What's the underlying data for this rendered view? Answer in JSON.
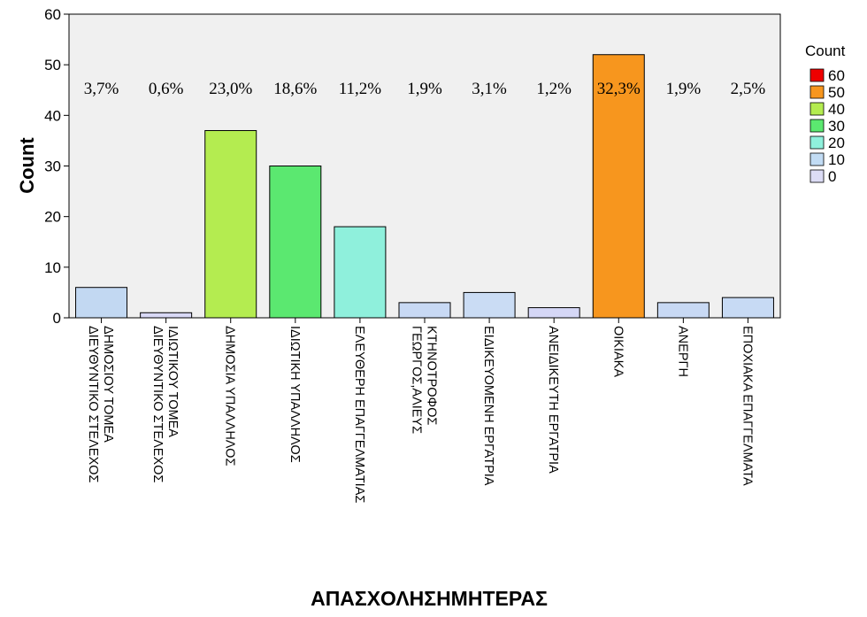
{
  "chart_data": {
    "type": "bar",
    "ylabel": "Count",
    "xlabel": "ΑΠΑΣΧΟΛΗΣΗΜΗΤΕΡΑΣ",
    "ylim": [
      0,
      60
    ],
    "yticks": [
      "0",
      "10",
      "20",
      "30",
      "40",
      "50",
      "60"
    ],
    "grid": false,
    "categories": [
      [
        "ΔΙΕΥΘΥΝΤΙΚΟ ΣΤΕΛΕΧΟΣ",
        "ΔΗΜΟΣΙΟΥ ΤΟΜΕΑ"
      ],
      [
        "ΔΙΕΥΘΥΝΤΙΚΟ ΣΤΕΛΕΧΟΣ",
        "ΙΔΙΩΤΙΚΟΥ ΤΟΜΕΑ"
      ],
      [
        "ΔΗΜΟΣΙΑ ΥΠΑΛΛΗΛΟΣ"
      ],
      [
        "ΙΔΙΩΤΙΚΗ ΥΠΑΛΛΗΛΟΣ"
      ],
      [
        "ΕΛΕΥΘΕΡΗ ΕΠΑΓΓΕΛΜΑΤΙΑΣ"
      ],
      [
        "ΓΕΩΡΓΟΣ,ΑΛΙΕΥΣ",
        "ΚΤΗΝΟΤΡΟΦΟΣ"
      ],
      [
        "ΕΙΔΙΚΕΥΟΜΕΝΗ ΕΡΓΑΤΡΙΑ"
      ],
      [
        "ΑΝΕΙΔΙΚΕΥΤΗ ΕΡΓΑΤΡΙΑ"
      ],
      [
        "ΟΙΚΙΑΚΑ"
      ],
      [
        "ΑΝΕΡΓΗ"
      ],
      [
        "ΕΠΟΧΙΑΚΑ ΕΠΑΓΓΕΛΜΑΤΑ"
      ]
    ],
    "values": [
      6,
      1,
      37,
      30,
      18,
      3,
      5,
      2,
      52,
      3,
      4
    ],
    "percent_labels": [
      "3,7%",
      "0,6%",
      "23,0%",
      "18,6%",
      "11,2%",
      "1,9%",
      "3,1%",
      "1,2%",
      "32,3%",
      "1,9%",
      "2,5%"
    ],
    "color_scale": [
      {
        "label": "60",
        "color": "#ee0000"
      },
      {
        "label": "50",
        "color": "#f7961e"
      },
      {
        "label": "40",
        "color": "#b4ec50"
      },
      {
        "label": "30",
        "color": "#5be870"
      },
      {
        "label": "20",
        "color": "#8ff0dc"
      },
      {
        "label": "10",
        "color": "#c2dcf4"
      },
      {
        "label": "0",
        "color": "#dcdcf5"
      }
    ],
    "bar_colors": [
      "#c2d8f2",
      "#d9d9f6",
      "#b4ec50",
      "#5be870",
      "#8ff0dc",
      "#c8d9f4",
      "#cadcf4",
      "#d5d7f6",
      "#f7961e",
      "#c8d9f4",
      "#c7daf4"
    ],
    "legend": {
      "title": "Count",
      "position": "right"
    }
  }
}
